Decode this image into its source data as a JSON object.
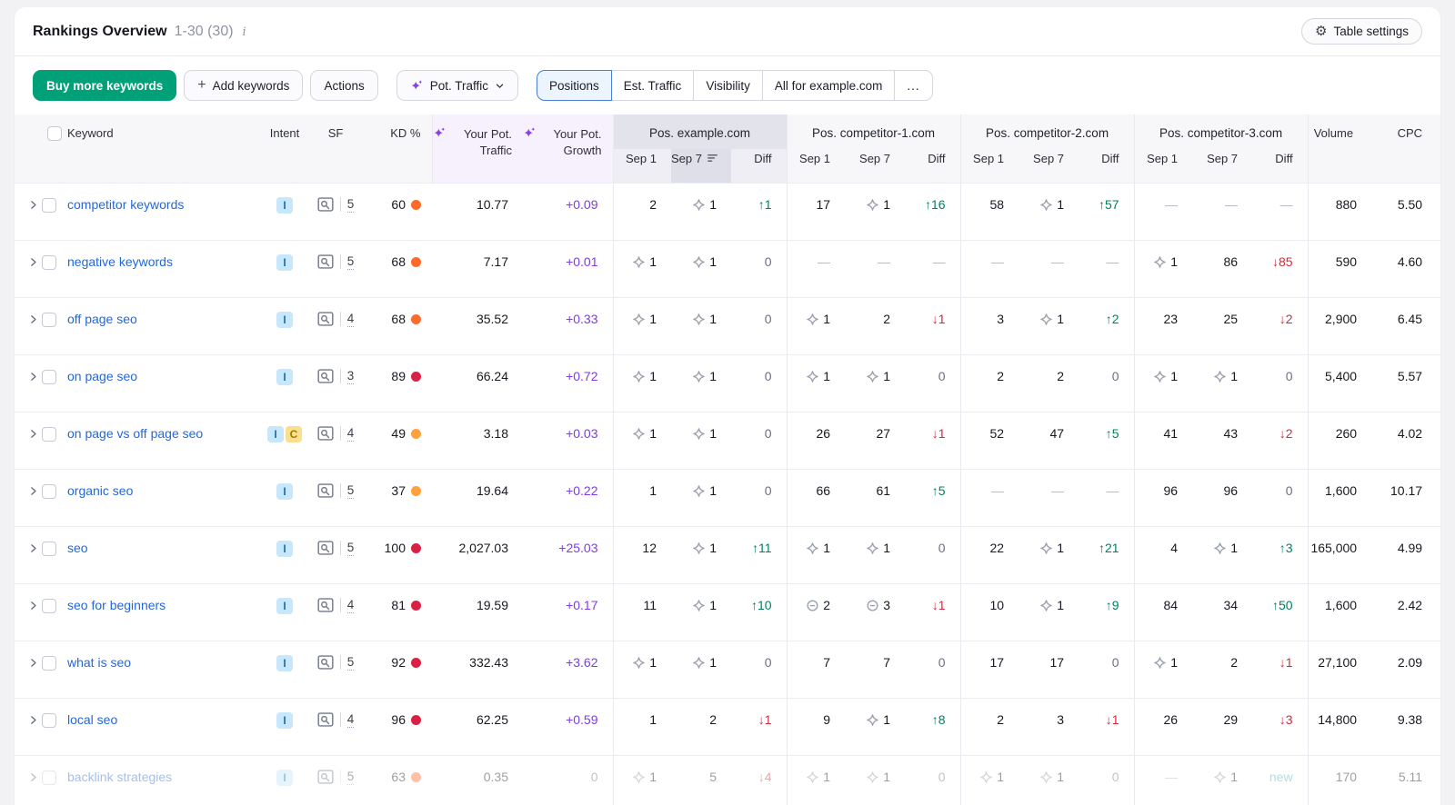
{
  "header": {
    "title": "Rankings Overview",
    "range": "1-30 (30)",
    "info_glyph": "i",
    "table_settings": "Table settings"
  },
  "toolbar": {
    "buy_label": "Buy more keywords",
    "add_label": "Add keywords",
    "actions_label": "Actions",
    "metric_label": "Pot. Traffic",
    "tabs": [
      {
        "label": "Positions",
        "active": true
      },
      {
        "label": "Est. Traffic",
        "active": false
      },
      {
        "label": "Visibility",
        "active": false
      },
      {
        "label": "All for example.com",
        "active": false
      },
      {
        "label": "...",
        "active": false
      }
    ]
  },
  "colors": {
    "accent_green": "#00a178",
    "link_blue": "#2368d8",
    "growth_purple": "#7e3be6",
    "diff_up": "#00805e",
    "diff_down": "#d6283c",
    "diff_new": "#3cb9aa",
    "kd": {
      "orange": "#ff6a2a",
      "red": "#d92045",
      "amber": "#ffa13c"
    }
  },
  "table": {
    "columns": {
      "keyword": "Keyword",
      "intent": "Intent",
      "sf": "SF",
      "kd": "KD %",
      "traffic": "Your Pot. Traffic",
      "growth": "Your Pot. Growth",
      "volume": "Volume",
      "cpc": "CPC"
    },
    "sub": {
      "sep1": "Sep 1",
      "sep7": "Sep 7",
      "diff": "Diff"
    },
    "groups": [
      {
        "label": "Pos. example.com",
        "selected": true,
        "sorted": "Sep 7"
      },
      {
        "label": "Pos. competitor-1.com",
        "selected": false
      },
      {
        "label": "Pos. competitor-2.com",
        "selected": false
      },
      {
        "label": "Pos. competitor-3.com",
        "selected": false
      }
    ],
    "rows": [
      {
        "keyword": "competitor keywords",
        "intents": [
          "I"
        ],
        "sf": "5",
        "kd": "60",
        "kd_color": "orange",
        "traffic": "10.77",
        "growth": "+0.09",
        "groups": [
          {
            "s1": {
              "v": "2"
            },
            "s7": {
              "v": "1",
              "i": "serp"
            },
            "df": {
              "v": "1",
              "d": "up"
            }
          },
          {
            "s1": {
              "v": "17"
            },
            "s7": {
              "v": "1",
              "i": "serp"
            },
            "df": {
              "v": "16",
              "d": "up"
            }
          },
          {
            "s1": {
              "v": "58"
            },
            "s7": {
              "v": "1",
              "i": "serp"
            },
            "df": {
              "v": "57",
              "d": "up"
            }
          },
          {
            "s1": {
              "v": "—"
            },
            "s7": {
              "v": "—"
            },
            "df": {
              "v": "—",
              "d": "none"
            }
          }
        ],
        "volume": "880",
        "cpc": "5.50",
        "faded": false
      },
      {
        "keyword": "negative keywords",
        "intents": [
          "I"
        ],
        "sf": "5",
        "kd": "68",
        "kd_color": "orange",
        "traffic": "7.17",
        "growth": "+0.01",
        "groups": [
          {
            "s1": {
              "v": "1",
              "i": "serp"
            },
            "s7": {
              "v": "1",
              "i": "serp"
            },
            "df": {
              "v": "0",
              "d": "flat"
            }
          },
          {
            "s1": {
              "v": "—"
            },
            "s7": {
              "v": "—"
            },
            "df": {
              "v": "—",
              "d": "none"
            }
          },
          {
            "s1": {
              "v": "—"
            },
            "s7": {
              "v": "—"
            },
            "df": {
              "v": "—",
              "d": "none"
            }
          },
          {
            "s1": {
              "v": "1",
              "i": "serp"
            },
            "s7": {
              "v": "86"
            },
            "df": {
              "v": "85",
              "d": "down"
            }
          }
        ],
        "volume": "590",
        "cpc": "4.60",
        "faded": false
      },
      {
        "keyword": "off page seo",
        "intents": [
          "I"
        ],
        "sf": "4",
        "kd": "68",
        "kd_color": "orange",
        "traffic": "35.52",
        "growth": "+0.33",
        "groups": [
          {
            "s1": {
              "v": "1",
              "i": "serp"
            },
            "s7": {
              "v": "1",
              "i": "serp"
            },
            "df": {
              "v": "0",
              "d": "flat"
            }
          },
          {
            "s1": {
              "v": "1",
              "i": "serp"
            },
            "s7": {
              "v": "2"
            },
            "df": {
              "v": "1",
              "d": "down"
            }
          },
          {
            "s1": {
              "v": "3"
            },
            "s7": {
              "v": "1",
              "i": "serp"
            },
            "df": {
              "v": "2",
              "d": "up"
            }
          },
          {
            "s1": {
              "v": "23"
            },
            "s7": {
              "v": "25"
            },
            "df": {
              "v": "2",
              "d": "down"
            }
          }
        ],
        "volume": "2,900",
        "cpc": "6.45",
        "faded": false
      },
      {
        "keyword": "on page seo",
        "intents": [
          "I"
        ],
        "sf": "3",
        "kd": "89",
        "kd_color": "red",
        "traffic": "66.24",
        "growth": "+0.72",
        "groups": [
          {
            "s1": {
              "v": "1",
              "i": "serp"
            },
            "s7": {
              "v": "1",
              "i": "serp"
            },
            "df": {
              "v": "0",
              "d": "flat"
            }
          },
          {
            "s1": {
              "v": "1",
              "i": "serp"
            },
            "s7": {
              "v": "1",
              "i": "serp"
            },
            "df": {
              "v": "0",
              "d": "flat"
            }
          },
          {
            "s1": {
              "v": "2"
            },
            "s7": {
              "v": "2"
            },
            "df": {
              "v": "0",
              "d": "flat"
            }
          },
          {
            "s1": {
              "v": "1",
              "i": "serp"
            },
            "s7": {
              "v": "1",
              "i": "serp"
            },
            "df": {
              "v": "0",
              "d": "flat"
            }
          }
        ],
        "volume": "5,400",
        "cpc": "5.57",
        "faded": false
      },
      {
        "keyword": "on page vs off page seo",
        "intents": [
          "I",
          "C"
        ],
        "sf": "4",
        "kd": "49",
        "kd_color": "amber",
        "traffic": "3.18",
        "growth": "+0.03",
        "groups": [
          {
            "s1": {
              "v": "1",
              "i": "serp"
            },
            "s7": {
              "v": "1",
              "i": "serp"
            },
            "df": {
              "v": "0",
              "d": "flat"
            }
          },
          {
            "s1": {
              "v": "26"
            },
            "s7": {
              "v": "27"
            },
            "df": {
              "v": "1",
              "d": "down"
            }
          },
          {
            "s1": {
              "v": "52"
            },
            "s7": {
              "v": "47"
            },
            "df": {
              "v": "5",
              "d": "up"
            }
          },
          {
            "s1": {
              "v": "41"
            },
            "s7": {
              "v": "43"
            },
            "df": {
              "v": "2",
              "d": "down"
            }
          }
        ],
        "volume": "260",
        "cpc": "4.02",
        "faded": false
      },
      {
        "keyword": "organic seo",
        "intents": [
          "I"
        ],
        "sf": "5",
        "kd": "37",
        "kd_color": "amber",
        "traffic": "19.64",
        "growth": "+0.22",
        "groups": [
          {
            "s1": {
              "v": "1"
            },
            "s7": {
              "v": "1",
              "i": "serp"
            },
            "df": {
              "v": "0",
              "d": "flat"
            }
          },
          {
            "s1": {
              "v": "66"
            },
            "s7": {
              "v": "61"
            },
            "df": {
              "v": "5",
              "d": "up"
            }
          },
          {
            "s1": {
              "v": "—"
            },
            "s7": {
              "v": "—"
            },
            "df": {
              "v": "—",
              "d": "none"
            }
          },
          {
            "s1": {
              "v": "96"
            },
            "s7": {
              "v": "96"
            },
            "df": {
              "v": "0",
              "d": "flat"
            }
          }
        ],
        "volume": "1,600",
        "cpc": "10.17",
        "faded": false
      },
      {
        "keyword": "seo",
        "intents": [
          "I"
        ],
        "sf": "5",
        "kd": "100",
        "kd_color": "red",
        "traffic": "2,027.03",
        "growth": "+25.03",
        "groups": [
          {
            "s1": {
              "v": "12"
            },
            "s7": {
              "v": "1",
              "i": "serp"
            },
            "df": {
              "v": "11",
              "d": "up"
            }
          },
          {
            "s1": {
              "v": "1",
              "i": "serp"
            },
            "s7": {
              "v": "1",
              "i": "serp"
            },
            "df": {
              "v": "0",
              "d": "flat"
            }
          },
          {
            "s1": {
              "v": "22"
            },
            "s7": {
              "v": "1",
              "i": "serp"
            },
            "df": {
              "v": "21",
              "d": "up"
            }
          },
          {
            "s1": {
              "v": "4"
            },
            "s7": {
              "v": "1",
              "i": "serp"
            },
            "df": {
              "v": "3",
              "d": "up"
            }
          }
        ],
        "volume": "165,000",
        "cpc": "4.99",
        "faded": false
      },
      {
        "keyword": "seo for beginners",
        "intents": [
          "I"
        ],
        "sf": "4",
        "kd": "81",
        "kd_color": "red",
        "traffic": "19.59",
        "growth": "+0.17",
        "groups": [
          {
            "s1": {
              "v": "11"
            },
            "s7": {
              "v": "1",
              "i": "serp"
            },
            "df": {
              "v": "10",
              "d": "up"
            }
          },
          {
            "s1": {
              "v": "2",
              "i": "sitelinks"
            },
            "s7": {
              "v": "3",
              "i": "sitelinks"
            },
            "df": {
              "v": "1",
              "d": "down"
            }
          },
          {
            "s1": {
              "v": "10"
            },
            "s7": {
              "v": "1",
              "i": "serp"
            },
            "df": {
              "v": "9",
              "d": "up"
            }
          },
          {
            "s1": {
              "v": "84"
            },
            "s7": {
              "v": "34"
            },
            "df": {
              "v": "50",
              "d": "up"
            }
          }
        ],
        "volume": "1,600",
        "cpc": "2.42",
        "faded": false
      },
      {
        "keyword": "what is seo",
        "intents": [
          "I"
        ],
        "sf": "5",
        "kd": "92",
        "kd_color": "red",
        "traffic": "332.43",
        "growth": "+3.62",
        "groups": [
          {
            "s1": {
              "v": "1",
              "i": "serp"
            },
            "s7": {
              "v": "1",
              "i": "serp"
            },
            "df": {
              "v": "0",
              "d": "flat"
            }
          },
          {
            "s1": {
              "v": "7"
            },
            "s7": {
              "v": "7"
            },
            "df": {
              "v": "0",
              "d": "flat"
            }
          },
          {
            "s1": {
              "v": "17"
            },
            "s7": {
              "v": "17"
            },
            "df": {
              "v": "0",
              "d": "flat"
            }
          },
          {
            "s1": {
              "v": "1",
              "i": "serp"
            },
            "s7": {
              "v": "2"
            },
            "df": {
              "v": "1",
              "d": "down"
            }
          }
        ],
        "volume": "27,100",
        "cpc": "2.09",
        "faded": false
      },
      {
        "keyword": "local seo",
        "intents": [
          "I"
        ],
        "sf": "4",
        "kd": "96",
        "kd_color": "red",
        "traffic": "62.25",
        "growth": "+0.59",
        "groups": [
          {
            "s1": {
              "v": "1"
            },
            "s7": {
              "v": "2"
            },
            "df": {
              "v": "1",
              "d": "down"
            }
          },
          {
            "s1": {
              "v": "9"
            },
            "s7": {
              "v": "1",
              "i": "serp"
            },
            "df": {
              "v": "8",
              "d": "up"
            }
          },
          {
            "s1": {
              "v": "2"
            },
            "s7": {
              "v": "3"
            },
            "df": {
              "v": "1",
              "d": "down"
            }
          },
          {
            "s1": {
              "v": "26"
            },
            "s7": {
              "v": "29"
            },
            "df": {
              "v": "3",
              "d": "down"
            }
          }
        ],
        "volume": "14,800",
        "cpc": "9.38",
        "faded": false
      },
      {
        "keyword": "backlink strategies",
        "intents": [
          "I"
        ],
        "sf": "5",
        "kd": "63",
        "kd_color": "orange",
        "traffic": "0.35",
        "growth": "0",
        "groups": [
          {
            "s1": {
              "v": "1",
              "i": "serp"
            },
            "s7": {
              "v": "5"
            },
            "df": {
              "v": "4",
              "d": "down"
            }
          },
          {
            "s1": {
              "v": "1",
              "i": "serp"
            },
            "s7": {
              "v": "1",
              "i": "serp"
            },
            "df": {
              "v": "0",
              "d": "flat"
            }
          },
          {
            "s1": {
              "v": "1",
              "i": "serp"
            },
            "s7": {
              "v": "1",
              "i": "serp"
            },
            "df": {
              "v": "0",
              "d": "flat"
            }
          },
          {
            "s1": {
              "v": "—"
            },
            "s7": {
              "v": "1",
              "i": "serp"
            },
            "df": {
              "v": "new",
              "d": "new"
            }
          }
        ],
        "volume": "170",
        "cpc": "5.11",
        "faded": true
      }
    ]
  }
}
